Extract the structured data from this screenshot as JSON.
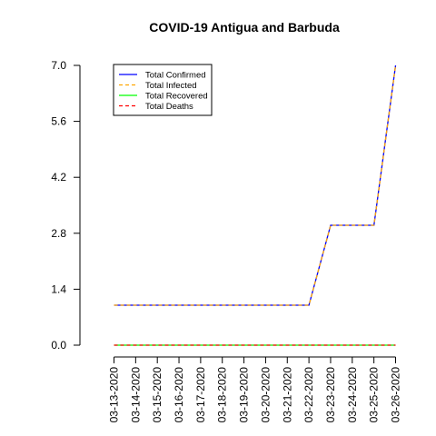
{
  "chart_data": {
    "type": "line",
    "title": "COVID-19 Antigua and Barbuda",
    "xlabel": "",
    "ylabel": "",
    "x": [
      "03-13-2020",
      "03-14-2020",
      "03-15-2020",
      "03-16-2020",
      "03-17-2020",
      "03-18-2020",
      "03-19-2020",
      "03-20-2020",
      "03-21-2020",
      "03-22-2020",
      "03-23-2020",
      "03-24-2020",
      "03-25-2020",
      "03-26-2020"
    ],
    "yticks": [
      "0.0",
      "1.4",
      "2.8",
      "4.2",
      "5.6",
      "7.0"
    ],
    "ylim": [
      0,
      7
    ],
    "grid": false,
    "legend_position": "top-left",
    "series": [
      {
        "name": "Total Confirmed",
        "color": "#0000ff",
        "dash": "solid",
        "values": [
          1,
          1,
          1,
          1,
          1,
          1,
          1,
          1,
          1,
          1,
          3,
          3,
          3,
          7
        ]
      },
      {
        "name": "Total Infected",
        "color": "#ffa500",
        "dash": "dashed",
        "values": [
          1,
          1,
          1,
          1,
          1,
          1,
          1,
          1,
          1,
          1,
          3,
          3,
          3,
          7
        ]
      },
      {
        "name": "Total Recovered",
        "color": "#00ff00",
        "dash": "solid",
        "values": [
          0,
          0,
          0,
          0,
          0,
          0,
          0,
          0,
          0,
          0,
          0,
          0,
          0,
          0
        ]
      },
      {
        "name": "Total Deaths",
        "color": "#ff0000",
        "dash": "dashed",
        "values": [
          0,
          0,
          0,
          0,
          0,
          0,
          0,
          0,
          0,
          0,
          0,
          0,
          0,
          0
        ]
      }
    ]
  }
}
